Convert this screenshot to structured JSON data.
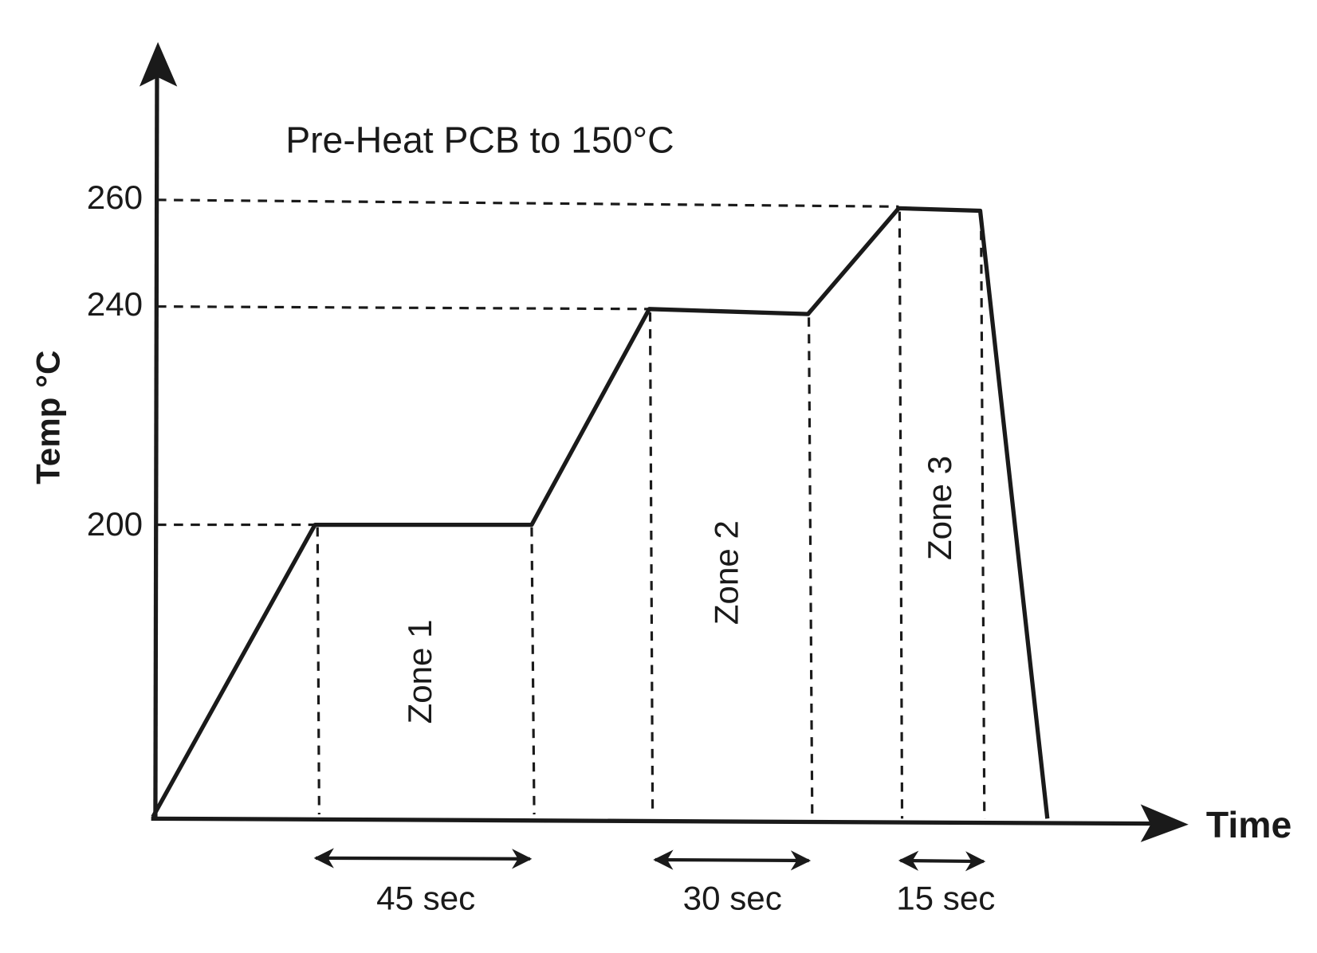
{
  "title": "Pre-Heat PCB to 150°C",
  "y_axis": {
    "label": "Temp °C",
    "ticks": [
      "260",
      "240",
      "200"
    ]
  },
  "x_axis": {
    "label": "Time"
  },
  "zones": [
    {
      "label": "Zone 1",
      "duration": "45 sec"
    },
    {
      "label": "Zone 2",
      "duration": "30 sec"
    },
    {
      "label": "Zone 3",
      "duration": "15 sec"
    }
  ]
}
